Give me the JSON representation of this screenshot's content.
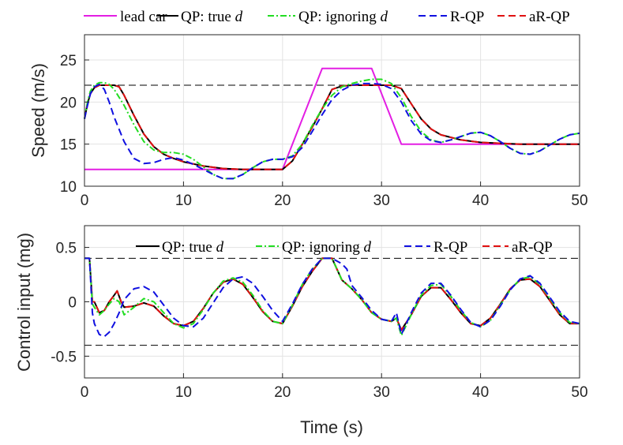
{
  "chart_data": [
    {
      "type": "line",
      "name": "speed",
      "ylabel": "Speed (m/s)",
      "xlabel": "",
      "xlim": [
        0,
        50
      ],
      "ylim": [
        10,
        28
      ],
      "xticks": [
        0,
        10,
        20,
        30,
        40,
        50
      ],
      "yticks": [
        10,
        15,
        20,
        25
      ],
      "grid": true,
      "legend_position": "top (outside)",
      "legend": [
        {
          "label": "lead car",
          "color": "#e31ee3",
          "style": "solid"
        },
        {
          "label": "QP: true",
          "italic": "d",
          "color": "#000000",
          "style": "solid"
        },
        {
          "label": "QP: ignoring",
          "italic": "d",
          "color": "#22dd22",
          "style": "dashdot"
        },
        {
          "label": "R-QP",
          "color": "#1010e0",
          "style": "dashed"
        },
        {
          "label": "aR-QP",
          "color": "#e01010",
          "style": "dashed"
        }
      ],
      "reference_lines": [
        22
      ],
      "series": [
        {
          "name": "lead car",
          "color": "#e31ee3",
          "style": "solid",
          "x": [
            0,
            20,
            24,
            29,
            32,
            50
          ],
          "y": [
            12,
            12,
            24,
            24,
            15,
            15
          ]
        },
        {
          "name": "QP: true d",
          "color": "#000000",
          "style": "solid",
          "x": [
            0,
            0.3,
            0.6,
            1,
            1.5,
            2,
            3,
            3.5,
            4,
            5,
            6,
            7,
            8,
            9,
            10,
            12,
            14,
            16,
            18,
            20,
            21,
            22,
            23,
            24,
            25,
            26,
            27,
            28,
            29,
            30,
            31,
            32,
            33,
            34,
            35,
            36,
            38,
            40,
            42,
            44,
            46,
            48,
            50
          ],
          "y": [
            18,
            19.8,
            21,
            21.7,
            22,
            22,
            22,
            21.8,
            20.8,
            18.4,
            16.2,
            14.7,
            13.8,
            13.3,
            12.9,
            12.4,
            12.1,
            12,
            12,
            12,
            13,
            15,
            17,
            19.2,
            21.5,
            21.9,
            22,
            22,
            22,
            22,
            22,
            21.6,
            19.8,
            18,
            16.8,
            16.1,
            15.5,
            15.2,
            15.1,
            15,
            15,
            15,
            15
          ]
        },
        {
          "name": "aR-QP",
          "color": "#e01010",
          "style": "dashed",
          "x": [
            0,
            0.3,
            0.6,
            1,
            1.5,
            2,
            3,
            3.5,
            4,
            5,
            6,
            7,
            8,
            9,
            10,
            12,
            14,
            16,
            18,
            20,
            21,
            22,
            23,
            24,
            25,
            26,
            27,
            28,
            29,
            30,
            31,
            32,
            33,
            34,
            35,
            36,
            38,
            40,
            42,
            44,
            46,
            48,
            50
          ],
          "y": [
            18,
            19.8,
            21,
            21.7,
            22,
            22,
            22,
            21.8,
            20.8,
            18.4,
            16.2,
            14.7,
            13.8,
            13.3,
            12.9,
            12.4,
            12.1,
            12,
            12,
            12,
            13,
            15,
            17,
            19.2,
            21.5,
            21.9,
            22,
            22,
            22,
            22,
            22,
            21.6,
            19.8,
            18,
            16.8,
            16.1,
            15.5,
            15.2,
            15.1,
            15,
            15,
            15,
            15
          ]
        },
        {
          "name": "QP: ignoring d",
          "color": "#22dd22",
          "style": "dashdot",
          "x": [
            0,
            0.3,
            0.6,
            1,
            1.5,
            2,
            2.5,
            3,
            4,
            5,
            6,
            7,
            8,
            9,
            10,
            11,
            12,
            13,
            14,
            15,
            16,
            17,
            18,
            19,
            20,
            21,
            22,
            23,
            24,
            25,
            26,
            27,
            28,
            29,
            30,
            31,
            32,
            33,
            34,
            35,
            36,
            37,
            38,
            39,
            40,
            41,
            42,
            43,
            44,
            45,
            46,
            47,
            48,
            49,
            50
          ],
          "y": [
            18,
            20,
            21.3,
            22,
            22.3,
            22.3,
            22.1,
            21.5,
            19.6,
            17.3,
            15.3,
            14.3,
            14,
            14,
            13.8,
            13.2,
            12.3,
            11.4,
            10.9,
            10.9,
            11.4,
            12.2,
            12.9,
            13.2,
            13.2,
            13.6,
            15,
            17.2,
            19.2,
            20.8,
            21.8,
            22.2,
            22.5,
            22.7,
            22.7,
            22.2,
            20.5,
            18.3,
            16.5,
            15.5,
            15.2,
            15.5,
            15.9,
            16.3,
            16.4,
            16,
            15.3,
            14.5,
            13.9,
            13.8,
            14.2,
            14.9,
            15.6,
            16.1,
            16.3
          ]
        },
        {
          "name": "R-QP",
          "color": "#1010e0",
          "style": "dashed",
          "x": [
            0,
            0.3,
            0.6,
            1,
            1.5,
            2,
            2.5,
            3,
            4,
            5,
            6,
            7,
            8,
            9,
            10,
            11,
            12,
            13,
            14,
            15,
            16,
            17,
            18,
            19,
            20,
            21,
            22,
            23,
            24,
            25,
            26,
            27,
            28,
            29,
            30,
            31,
            32,
            33,
            34,
            35,
            36,
            37,
            38,
            39,
            40,
            41,
            42,
            43,
            44,
            45,
            46,
            47,
            48,
            49,
            50
          ],
          "y": [
            18,
            19.6,
            21,
            21.8,
            22.1,
            21.5,
            20,
            18.2,
            15.3,
            13.3,
            12.7,
            12.8,
            13.2,
            13.4,
            13.1,
            12.6,
            12,
            11.4,
            10.9,
            10.9,
            11.4,
            12.2,
            12.9,
            13.2,
            13.2,
            13.5,
            14.6,
            16.5,
            18.5,
            20.3,
            21.4,
            22,
            22.2,
            22.2,
            22.1,
            21.6,
            20,
            17.8,
            16.2,
            15.4,
            15.2,
            15.5,
            15.9,
            16.3,
            16.4,
            16,
            15.3,
            14.5,
            13.9,
            13.8,
            14.2,
            14.9,
            15.6,
            16.1,
            16.3
          ]
        }
      ]
    },
    {
      "type": "line",
      "name": "control",
      "ylabel": "Control input (mg)",
      "xlabel": "Time (s)",
      "xlim": [
        0,
        50
      ],
      "ylim": [
        -0.7,
        0.7
      ],
      "xticks": [
        0,
        10,
        20,
        30,
        40,
        50
      ],
      "yticks": [
        -0.5,
        0,
        0.5
      ],
      "ytick_labels": [
        "-0.5",
        "0",
        "0.5"
      ],
      "grid": true,
      "legend_position": "top (inside)",
      "legend": [
        {
          "label": "QP: true",
          "italic": "d",
          "color": "#000000",
          "style": "solid"
        },
        {
          "label": "QP: ignoring",
          "italic": "d",
          "color": "#22dd22",
          "style": "dashdot"
        },
        {
          "label": "R-QP",
          "color": "#1010e0",
          "style": "dashed"
        },
        {
          "label": "aR-QP",
          "color": "#e01010",
          "style": "dashed"
        }
      ],
      "reference_lines": [
        0.4,
        -0.4
      ],
      "series": [
        {
          "name": "QP: true d",
          "color": "#000000",
          "style": "solid",
          "x": [
            0,
            0.5,
            0.8,
            1,
            1.5,
            2,
            2.5,
            3,
            3.3,
            3.7,
            4,
            5,
            6,
            7,
            8,
            9,
            10,
            11,
            12,
            13,
            14,
            15,
            16,
            17,
            18,
            19,
            20,
            21,
            22,
            23,
            24,
            25,
            26,
            27,
            28,
            29,
            30,
            31,
            31.5,
            32,
            33,
            34,
            35,
            36,
            37,
            38,
            39,
            40,
            41,
            42,
            43,
            44,
            45,
            46,
            47,
            48,
            49,
            50
          ],
          "y": [
            0.4,
            0.4,
            0,
            0,
            -0.1,
            -0.08,
            0,
            0.06,
            0.1,
            0,
            -0.05,
            -0.04,
            -0.01,
            -0.04,
            -0.13,
            -0.2,
            -0.22,
            -0.18,
            -0.06,
            0.08,
            0.18,
            0.21,
            0.16,
            0.04,
            -0.09,
            -0.18,
            -0.2,
            -0.04,
            0.14,
            0.28,
            0.4,
            0.4,
            0.2,
            0.12,
            0.02,
            -0.1,
            -0.16,
            -0.18,
            -0.15,
            -0.26,
            -0.12,
            0.05,
            0.13,
            0.13,
            0.02,
            -0.1,
            -0.2,
            -0.22,
            -0.15,
            -0.02,
            0.12,
            0.2,
            0.21,
            0.14,
            0.01,
            -0.12,
            -0.2,
            -0.2
          ]
        },
        {
          "name": "aR-QP",
          "color": "#e01010",
          "style": "dashed",
          "x": [
            0,
            0.5,
            0.8,
            1,
            1.5,
            2,
            2.5,
            3,
            3.3,
            3.7,
            4,
            5,
            6,
            7,
            8,
            9,
            10,
            11,
            12,
            13,
            14,
            15,
            16,
            17,
            18,
            19,
            20,
            21,
            22,
            23,
            24,
            25,
            26,
            27,
            28,
            29,
            30,
            31,
            31.5,
            32,
            33,
            34,
            35,
            36,
            37,
            38,
            39,
            40,
            41,
            42,
            43,
            44,
            45,
            46,
            47,
            48,
            49,
            50
          ],
          "y": [
            0.4,
            0.4,
            0,
            0,
            -0.1,
            -0.08,
            0,
            0.06,
            0.1,
            0,
            -0.05,
            -0.04,
            -0.01,
            -0.04,
            -0.13,
            -0.2,
            -0.22,
            -0.18,
            -0.06,
            0.08,
            0.18,
            0.21,
            0.16,
            0.04,
            -0.09,
            -0.18,
            -0.2,
            -0.04,
            0.14,
            0.28,
            0.4,
            0.4,
            0.2,
            0.12,
            0.02,
            -0.1,
            -0.16,
            -0.18,
            -0.15,
            -0.26,
            -0.12,
            0.05,
            0.13,
            0.13,
            0.02,
            -0.1,
            -0.2,
            -0.22,
            -0.15,
            -0.02,
            0.12,
            0.2,
            0.21,
            0.14,
            0.01,
            -0.12,
            -0.2,
            -0.2
          ]
        },
        {
          "name": "QP: ignoring d",
          "color": "#22dd22",
          "style": "dashdot",
          "x": [
            0,
            0.5,
            0.8,
            1,
            1.5,
            2,
            2.5,
            3,
            3.5,
            4,
            5,
            6,
            7,
            8,
            9,
            10,
            11,
            12,
            13,
            14,
            15,
            16,
            17,
            18,
            19,
            20,
            21,
            22,
            23,
            24,
            25,
            26,
            27,
            28,
            29,
            30,
            31,
            31.5,
            32,
            33,
            34,
            35,
            36,
            37,
            38,
            39,
            40,
            41,
            42,
            43,
            44,
            45,
            46,
            47,
            48,
            49,
            50
          ],
          "y": [
            0.4,
            0.4,
            -0.02,
            -0.05,
            -0.12,
            -0.08,
            -0.02,
            0.03,
            0,
            -0.12,
            -0.05,
            0.03,
            0,
            -0.1,
            -0.2,
            -0.24,
            -0.2,
            -0.07,
            0.08,
            0.19,
            0.22,
            0.18,
            0.06,
            -0.08,
            -0.18,
            -0.2,
            -0.03,
            0.16,
            0.3,
            0.4,
            0.4,
            0.2,
            0.12,
            0.02,
            -0.1,
            -0.16,
            -0.18,
            -0.15,
            -0.31,
            -0.12,
            0.06,
            0.15,
            0.16,
            0.05,
            -0.08,
            -0.19,
            -0.23,
            -0.17,
            -0.03,
            0.11,
            0.21,
            0.23,
            0.16,
            0.03,
            -0.1,
            -0.19,
            -0.2
          ]
        },
        {
          "name": "R-QP",
          "color": "#1010e0",
          "style": "dashed",
          "x": [
            0,
            0.5,
            0.8,
            1,
            1.5,
            2,
            2.5,
            3,
            3.5,
            4,
            5,
            6,
            7,
            8,
            9,
            10,
            11,
            12,
            13,
            14,
            15,
            16,
            17,
            18,
            19,
            20,
            21,
            22,
            23,
            24,
            25,
            26,
            26.5,
            27,
            28,
            29,
            30,
            31,
            31.5,
            32,
            33,
            34,
            35,
            36,
            37,
            38,
            39,
            40,
            41,
            42,
            43,
            44,
            45,
            46,
            47,
            48,
            49,
            50
          ],
          "y": [
            0.4,
            0.4,
            -0.1,
            -0.2,
            -0.3,
            -0.32,
            -0.28,
            -0.2,
            -0.1,
            0.02,
            0.12,
            0.14,
            0.09,
            -0.03,
            -0.15,
            -0.22,
            -0.23,
            -0.15,
            -0.01,
            0.13,
            0.21,
            0.23,
            0.17,
            0.05,
            -0.08,
            -0.18,
            -0.02,
            0.16,
            0.3,
            0.4,
            0.4,
            0.35,
            0.3,
            0.15,
            0.04,
            -0.08,
            -0.16,
            -0.18,
            -0.1,
            -0.3,
            -0.1,
            0.08,
            0.17,
            0.17,
            0.06,
            -0.07,
            -0.19,
            -0.23,
            -0.17,
            -0.04,
            0.11,
            0.21,
            0.24,
            0.17,
            0.04,
            -0.09,
            -0.18,
            -0.2
          ]
        }
      ]
    }
  ]
}
